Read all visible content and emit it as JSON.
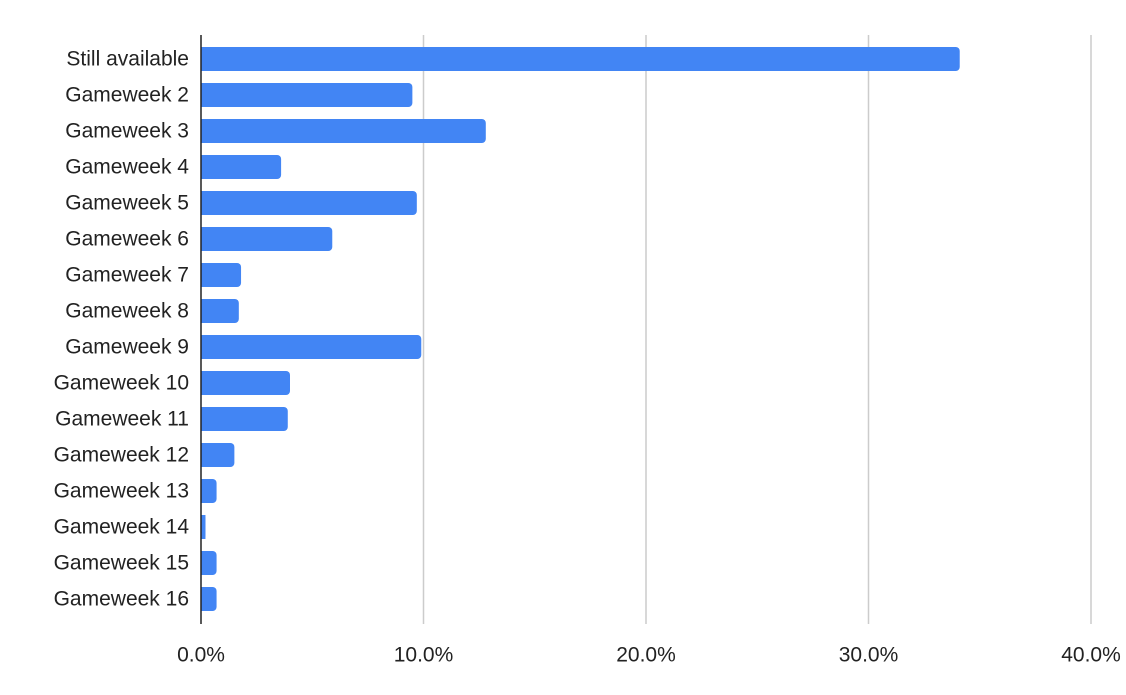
{
  "chart_data": {
    "type": "bar",
    "orientation": "horizontal",
    "categories": [
      "Still available",
      "Gameweek 2",
      "Gameweek 3",
      "Gameweek 4",
      "Gameweek 5",
      "Gameweek 6",
      "Gameweek 7",
      "Gameweek 8",
      "Gameweek 9",
      "Gameweek 10",
      "Gameweek 11",
      "Gameweek 12",
      "Gameweek 13",
      "Gameweek 14",
      "Gameweek 15",
      "Gameweek 16"
    ],
    "values": [
      34.1,
      9.5,
      12.8,
      3.6,
      9.7,
      5.9,
      1.8,
      1.7,
      9.9,
      4.0,
      3.9,
      1.5,
      0.7,
      0.2,
      0.7,
      0.7
    ],
    "xlim": [
      0,
      40
    ],
    "xticks": [
      0,
      10,
      20,
      30,
      40
    ],
    "xtick_labels": [
      "0.0%",
      "10.0%",
      "20.0%",
      "30.0%",
      "40.0%"
    ],
    "title": "",
    "xlabel": "",
    "ylabel": "",
    "grid": true,
    "legend": "none",
    "colors": {
      "bar": "#4285f4",
      "grid": "#cccccc",
      "axis": "#222222",
      "text": "#222222"
    }
  }
}
